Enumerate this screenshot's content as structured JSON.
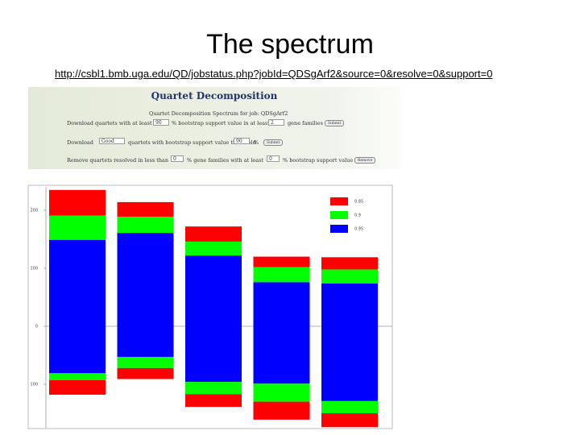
{
  "header": {
    "title": "The spectrum",
    "url": "http://csbl1.bmb.uga.edu/QD/jobstatus.php?jobId=QDSgArf2&source=0&resolve=0&support=0"
  },
  "form": {
    "heading": "Quartet Decomposition",
    "subheading": "Quartet Decomposition Spectrum for job: QDSgArf2",
    "row1": [
      "Download quartets with at least",
      "90",
      "% bootstrap support value in at least",
      "2",
      "gene families",
      "Submit"
    ],
    "row2": [
      "Download",
      "Good",
      "quartets with bootstrap support value threshold",
      "90",
      "%",
      "Submit"
    ],
    "row3": [
      "Remove quartets resolved in less than",
      "0",
      "% gene families with at least",
      "0",
      "% bootstrap support value",
      "Remove"
    ]
  },
  "chart_data": {
    "type": "bar",
    "stacked": true,
    "categories": [
      null,
      null,
      null,
      null,
      null
    ],
    "series": [
      {
        "name": "0.85",
        "color": "#ff0000",
        "values": [
          44,
          25,
          26,
          18,
          21
        ],
        "values_below": [
          -25,
          -19,
          -22,
          -31,
          -24
        ]
      },
      {
        "name": "0.9",
        "color": "#00ff00",
        "values": [
          42,
          28,
          24,
          26,
          24
        ],
        "values_below": [
          -12,
          -19,
          -21,
          -31,
          -21
        ]
      },
      {
        "name": "0.95",
        "color": "#0000ff",
        "values": [
          149,
          161,
          122,
          76,
          74
        ],
        "values_below": [
          -81,
          -53,
          -96,
          -99,
          -129
        ]
      }
    ],
    "ylim": [
      -175,
      240
    ],
    "yticks": [
      {
        "value": -100,
        "label": "100"
      },
      0,
      100,
      200
    ],
    "legend": "top-right"
  }
}
